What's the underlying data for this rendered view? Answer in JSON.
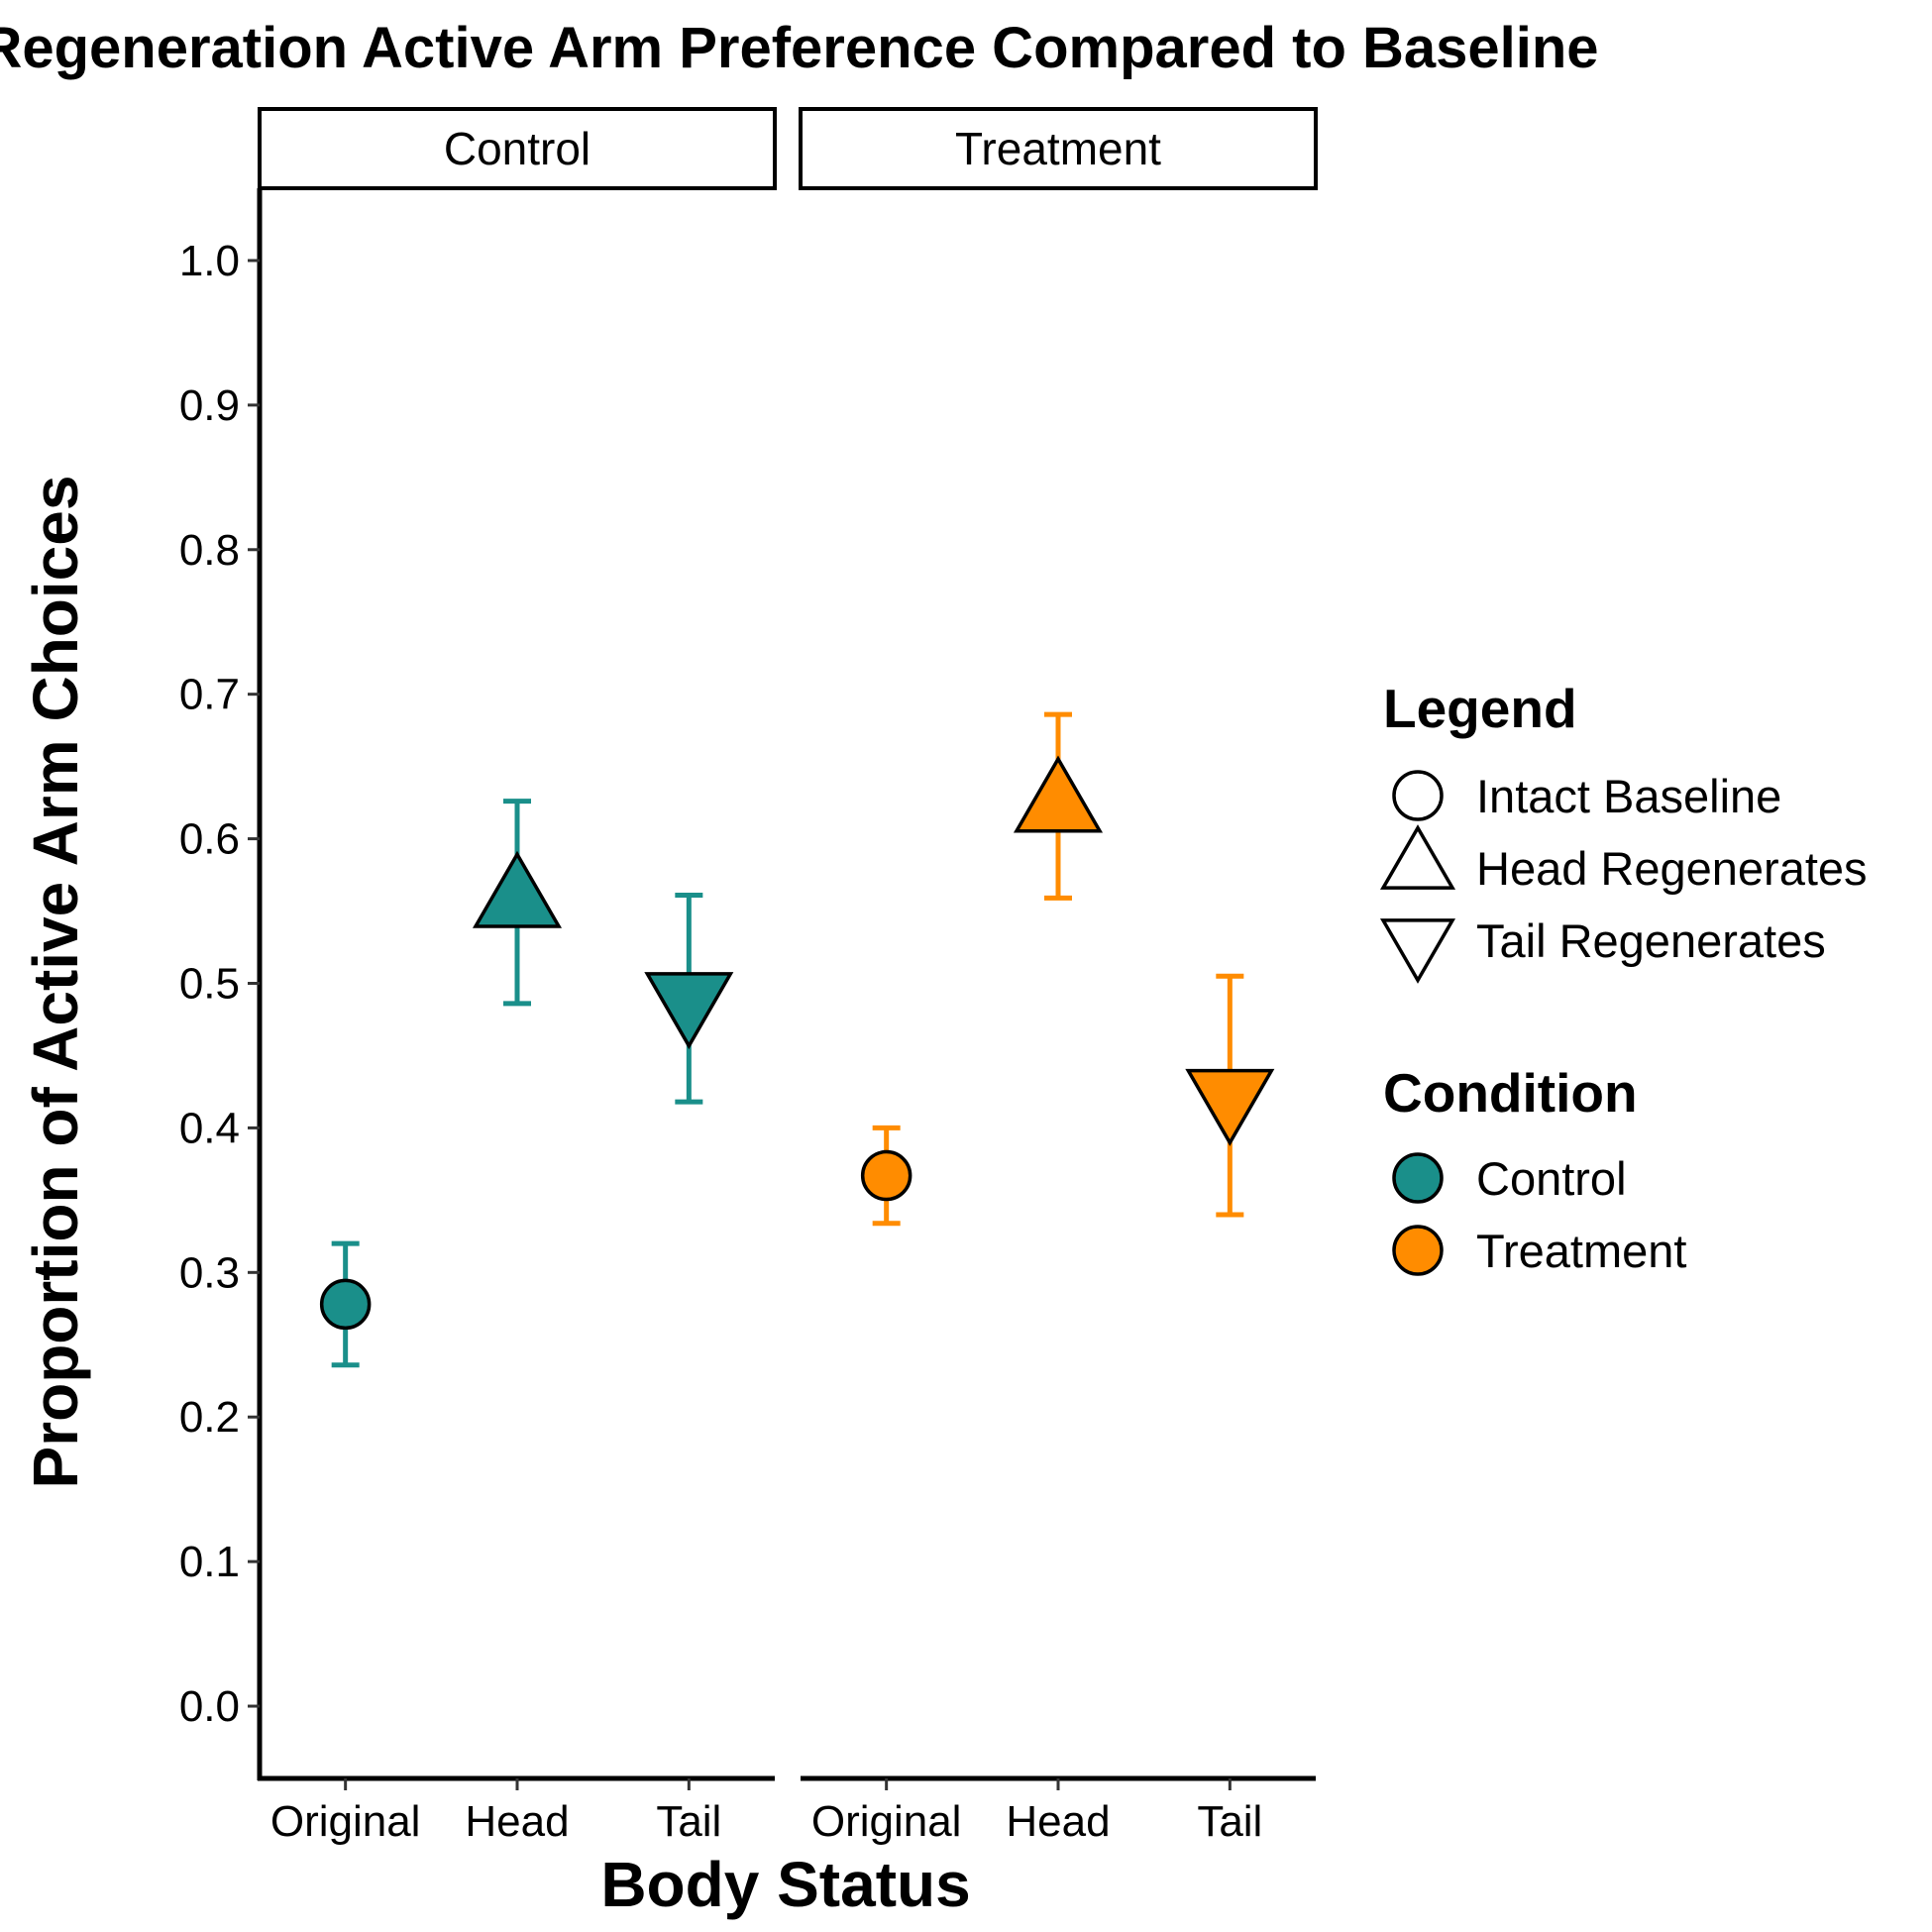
{
  "chart_data": {
    "type": "scatter",
    "title": "Regeneration Active Arm Preference Compared to Baseline",
    "xlabel": "Body Status",
    "ylabel": "Proportion of Active Arm Choices",
    "ylim": [
      -0.05,
      1.05
    ],
    "yticks": [
      "0.0",
      "0.1",
      "0.2",
      "0.3",
      "0.4",
      "0.5",
      "0.6",
      "0.7",
      "0.8",
      "0.9",
      "1.0"
    ],
    "categories": [
      "Original",
      "Head",
      "Tail"
    ],
    "grid": false,
    "legend_position": "right",
    "panels": [
      {
        "label": "Control",
        "color": "#1a8f8a",
        "points": [
          {
            "x": "Original",
            "shape": "Intact Baseline",
            "y": 0.278,
            "ymin": 0.236,
            "ymax": 0.32
          },
          {
            "x": "Head",
            "shape": "Head Regenerates",
            "y": 0.556,
            "ymin": 0.486,
            "ymax": 0.626
          },
          {
            "x": "Tail",
            "shape": "Tail Regenerates",
            "y": 0.49,
            "ymin": 0.418,
            "ymax": 0.561
          }
        ]
      },
      {
        "label": "Treatment",
        "color": "#ff8c00",
        "points": [
          {
            "x": "Original",
            "shape": "Intact Baseline",
            "y": 0.367,
            "ymin": 0.334,
            "ymax": 0.4
          },
          {
            "x": "Head",
            "shape": "Head Regenerates",
            "y": 0.622,
            "ymin": 0.559,
            "ymax": 0.686
          },
          {
            "x": "Tail",
            "shape": "Tail Regenerates",
            "y": 0.423,
            "ymin": 0.34,
            "ymax": 0.505
          }
        ]
      }
    ],
    "legend_shape": {
      "title": "Legend",
      "items": [
        {
          "label": "Intact Baseline",
          "shape": "circle"
        },
        {
          "label": "Head Regenerates",
          "shape": "triangle-up"
        },
        {
          "label": "Tail Regenerates",
          "shape": "triangle-down"
        }
      ]
    },
    "legend_color": {
      "title": "Condition",
      "items": [
        {
          "label": "Control",
          "color": "#1a8f8a"
        },
        {
          "label": "Treatment",
          "color": "#ff8c00"
        }
      ]
    }
  }
}
